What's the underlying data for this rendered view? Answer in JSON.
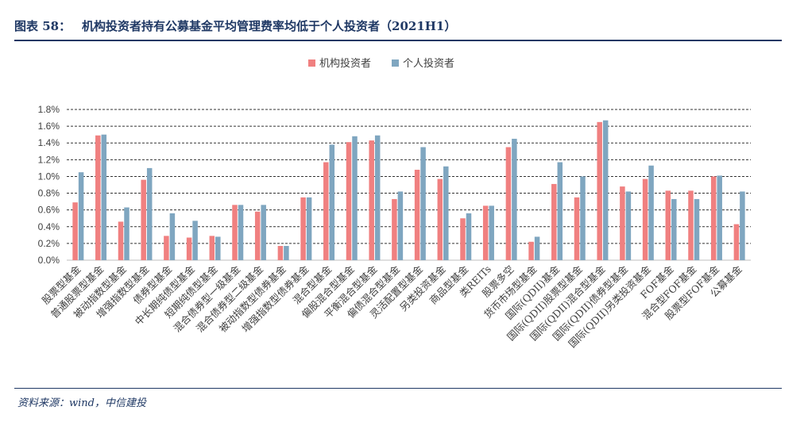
{
  "figure": {
    "label": "图表 58：",
    "title": "机构投资者持有公募基金平均管理费率均低于个人投资者（2021H1）",
    "source": "资料来源：wind，中信建投"
  },
  "colors": {
    "institution": "#f08080",
    "individual": "#7fa6c0",
    "grid": "#333333",
    "axis": "#bfbfbf",
    "text": "#404040"
  },
  "chart_data": {
    "type": "bar",
    "title": "",
    "xlabel": "",
    "ylabel": "",
    "ylim": [
      0,
      1.8
    ],
    "yticks": [
      "0.0%",
      "0.2%",
      "0.4%",
      "0.6%",
      "0.8%",
      "1.0%",
      "1.2%",
      "1.4%",
      "1.6%",
      "1.8%"
    ],
    "grid": true,
    "legend_position": "top",
    "categories": [
      "股票型基金",
      "普通股票型基金",
      "被动指数型基金",
      "增强指数型基金",
      "债券型基金",
      "中长期纯债型基金",
      "短期纯债型基金",
      "混合债券型一级基金",
      "混合债券型二级基金",
      "被动指数型债券基金",
      "增强指数型债券基金",
      "混合型基金",
      "偏股混合型基金",
      "平衡混合型基金",
      "偏债混合型基金",
      "灵活配置型基金",
      "另类投资基金",
      "商品型基金",
      "类REITs",
      "股票多空",
      "货币市场型基金",
      "国际(QDII)基金",
      "国际(QDII)股票型基金",
      "国际(QDII)混合型基金",
      "国际(QDII)债券型基金",
      "国际(QDII)另类投资基金",
      "FOF基金",
      "混合型FOF基金",
      "股票型FOF基金",
      "公募基金"
    ],
    "series": [
      {
        "name": "机构投资者",
        "values": [
          0.69,
          1.49,
          0.46,
          0.96,
          0.29,
          0.27,
          0.29,
          0.66,
          0.58,
          0.17,
          0.75,
          1.17,
          1.41,
          1.43,
          0.73,
          1.08,
          0.97,
          0.5,
          0.65,
          1.35,
          0.22,
          0.91,
          0.75,
          1.65,
          0.88,
          0.97,
          0.83,
          0.83,
          1.0,
          0.43
        ]
      },
      {
        "name": "个人投资者",
        "values": [
          1.05,
          1.5,
          0.63,
          1.1,
          0.56,
          0.47,
          0.28,
          0.66,
          0.66,
          0.17,
          0.75,
          1.38,
          1.48,
          1.49,
          0.82,
          1.35,
          1.12,
          0.56,
          0.65,
          1.45,
          0.28,
          1.17,
          1.0,
          1.67,
          0.82,
          1.13,
          0.73,
          0.73,
          1.01,
          0.82
        ]
      }
    ]
  }
}
